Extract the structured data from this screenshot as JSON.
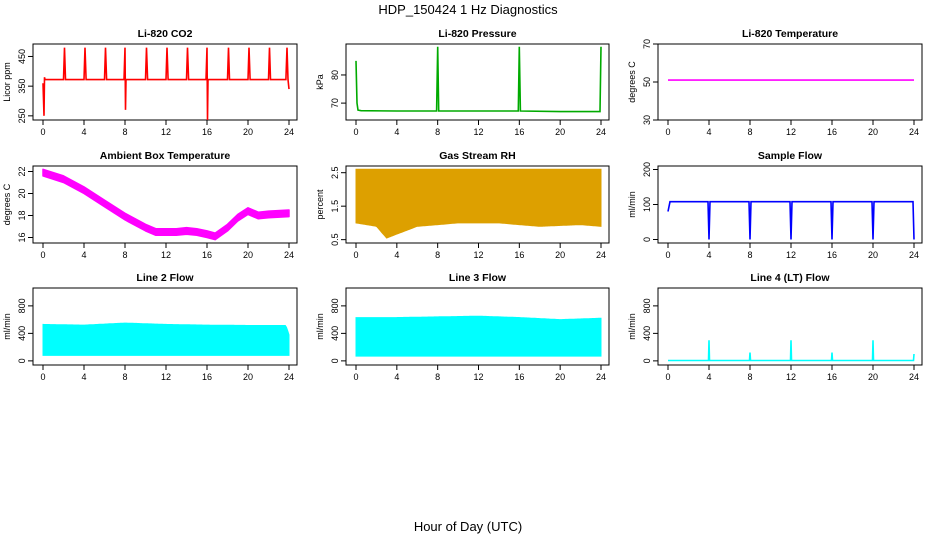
{
  "title": "HDP_150424  1 Hz Diagnostics",
  "xlabel": "Hour of Day (UTC)",
  "chart_data": [
    {
      "type": "line",
      "title": "Li-820 CO2",
      "ylabel": "Licor ppm",
      "color": "#ff0000",
      "xlim": [
        0,
        24
      ],
      "xticks": [
        0,
        4,
        8,
        12,
        16,
        20,
        24
      ],
      "ylim": [
        236,
        492
      ],
      "yticks": [
        250,
        350,
        450
      ],
      "series": [
        {
          "x": [
            0,
            0.1,
            0.15,
            0.2,
            0.3,
            2.0,
            2.1,
            2.2,
            4.0,
            4.1,
            4.2,
            6.0,
            6.1,
            6.2,
            7.9,
            8.0,
            8.05,
            8.1,
            10.0,
            10.1,
            10.2,
            12.0,
            12.1,
            12.2,
            14.0,
            14.1,
            14.2,
            15.9,
            16.0,
            16.05,
            16.1,
            18.0,
            18.1,
            18.2,
            20.0,
            20.1,
            20.2,
            22.0,
            22.1,
            22.2,
            23.7,
            23.8,
            23.9,
            24.0
          ],
          "y": [
            360,
            250,
            380,
            372,
            372,
            372,
            480,
            372,
            372,
            480,
            372,
            372,
            480,
            372,
            372,
            480,
            270,
            372,
            372,
            480,
            372,
            372,
            480,
            372,
            372,
            480,
            372,
            372,
            480,
            236,
            372,
            372,
            480,
            372,
            372,
            480,
            372,
            372,
            480,
            372,
            372,
            480,
            372,
            340
          ]
        }
      ]
    },
    {
      "type": "line",
      "title": "Li-820 Pressure",
      "ylabel": "kPa",
      "color": "#00aa00",
      "xlim": [
        0,
        24
      ],
      "xticks": [
        0,
        4,
        8,
        12,
        16,
        20,
        24
      ],
      "ylim": [
        64,
        91
      ],
      "yticks": [
        70,
        80
      ],
      "series": [
        {
          "x": [
            0,
            0.1,
            0.2,
            0.5,
            4,
            7.9,
            8.0,
            8.1,
            12,
            15.9,
            16.0,
            16.1,
            20,
            23.9,
            24.0
          ],
          "y": [
            85,
            70,
            67.5,
            67.3,
            67.2,
            67.2,
            90,
            67.2,
            67.2,
            67.2,
            90,
            67.2,
            67.0,
            67.0,
            90
          ]
        }
      ]
    },
    {
      "type": "line",
      "title": "Li-820 Temperature",
      "ylabel": "degrees C",
      "color": "#ff00ff",
      "xlim": [
        0,
        24
      ],
      "xticks": [
        0,
        4,
        8,
        12,
        16,
        20,
        24
      ],
      "ylim": [
        30,
        70
      ],
      "yticks": [
        30,
        50,
        70
      ],
      "series": [
        {
          "x": [
            0,
            24
          ],
          "y": [
            51,
            51
          ]
        }
      ]
    },
    {
      "type": "line",
      "title": "Ambient Box Temperature",
      "ylabel": "degrees C",
      "color": "#ff00ff",
      "xlim": [
        0,
        24
      ],
      "xticks": [
        0,
        4,
        8,
        12,
        16,
        20,
        24
      ],
      "ylim": [
        15.5,
        22.5
      ],
      "yticks": [
        16,
        18,
        20,
        22
      ],
      "band": 0.6,
      "series": [
        {
          "x": [
            0,
            2,
            4,
            6,
            8,
            10,
            11,
            12,
            13,
            14,
            15,
            16,
            16.8,
            18,
            19,
            20,
            21,
            22,
            24
          ],
          "y": [
            21.9,
            21.3,
            20.3,
            19.1,
            17.9,
            16.9,
            16.5,
            16.5,
            16.5,
            16.6,
            16.5,
            16.3,
            16.1,
            16.9,
            17.8,
            18.4,
            18.0,
            18.1,
            18.2
          ]
        }
      ]
    },
    {
      "type": "area",
      "title": "Gas Stream RH",
      "ylabel": "percent",
      "color": "#dda000",
      "xlim": [
        0,
        24
      ],
      "xticks": [
        0,
        4,
        8,
        12,
        16,
        20,
        24
      ],
      "ylim": [
        0.4,
        2.7
      ],
      "yticks": [
        0.5,
        1.5,
        2.5
      ],
      "series": [
        {
          "name": "upper",
          "x": [
            0,
            24
          ],
          "y": [
            2.6,
            2.6
          ]
        },
        {
          "name": "lower",
          "x": [
            0,
            2,
            3,
            6,
            10,
            14,
            18,
            22,
            24
          ],
          "y": [
            1.0,
            0.9,
            0.55,
            0.9,
            1.0,
            1.0,
            0.9,
            0.95,
            0.9
          ]
        }
      ]
    },
    {
      "type": "line",
      "title": "Sample Flow",
      "ylabel": "ml/min",
      "color": "#0000ff",
      "xlim": [
        0,
        24
      ],
      "xticks": [
        0,
        4,
        8,
        12,
        16,
        20,
        24
      ],
      "ylim": [
        -10,
        210
      ],
      "yticks": [
        0,
        100,
        200
      ],
      "series": [
        {
          "x": [
            0,
            0.2,
            3.9,
            4.0,
            4.1,
            7.9,
            8.0,
            8.1,
            11.9,
            12.0,
            12.1,
            15.9,
            16.0,
            16.1,
            19.9,
            20.0,
            20.1,
            23.9,
            24.0
          ],
          "y": [
            80,
            108,
            108,
            0,
            108,
            108,
            0,
            108,
            108,
            0,
            108,
            108,
            0,
            108,
            108,
            0,
            108,
            108,
            0
          ]
        }
      ]
    },
    {
      "type": "area",
      "title": "Line 2 Flow",
      "ylabel": "ml/min",
      "color": "#00ffff",
      "xlim": [
        0,
        24
      ],
      "xticks": [
        0,
        4,
        8,
        12,
        16,
        20,
        24
      ],
      "ylim": [
        -60,
        1060
      ],
      "yticks": [
        0,
        400,
        800
      ],
      "series": [
        {
          "name": "upper",
          "x": [
            0,
            4,
            8,
            12,
            16,
            20,
            23.7,
            24
          ],
          "y": [
            530,
            520,
            550,
            530,
            520,
            515,
            515,
            380
          ]
        },
        {
          "name": "lower",
          "x": [
            0,
            24
          ],
          "y": [
            80,
            80
          ]
        }
      ]
    },
    {
      "type": "area",
      "title": "Line 3 Flow",
      "ylabel": "ml/min",
      "color": "#00ffff",
      "xlim": [
        0,
        24
      ],
      "xticks": [
        0,
        4,
        8,
        12,
        16,
        20,
        24
      ],
      "ylim": [
        -60,
        1060
      ],
      "yticks": [
        0,
        400,
        800
      ],
      "series": [
        {
          "name": "upper",
          "x": [
            0,
            4,
            8,
            12,
            16,
            20,
            24
          ],
          "y": [
            630,
            630,
            640,
            650,
            630,
            600,
            620
          ]
        },
        {
          "name": "lower",
          "x": [
            0,
            24
          ],
          "y": [
            70,
            70
          ]
        }
      ]
    },
    {
      "type": "line",
      "title": "Line 4 (LT) Flow",
      "ylabel": "ml/min",
      "color": "#00ffff",
      "xlim": [
        0,
        24
      ],
      "xticks": [
        0,
        4,
        8,
        12,
        16,
        20,
        24
      ],
      "ylim": [
        -60,
        1060
      ],
      "yticks": [
        0,
        400,
        800
      ],
      "series": [
        {
          "x": [
            0,
            3.95,
            4.0,
            4.05,
            7.95,
            8.0,
            8.05,
            11.95,
            12.0,
            12.05,
            15.95,
            16.0,
            16.05,
            19.95,
            20.0,
            20.05,
            23.95,
            24.0
          ],
          "y": [
            5,
            5,
            300,
            5,
            5,
            120,
            5,
            5,
            300,
            5,
            5,
            120,
            5,
            5,
            300,
            5,
            5,
            100
          ]
        }
      ]
    }
  ]
}
